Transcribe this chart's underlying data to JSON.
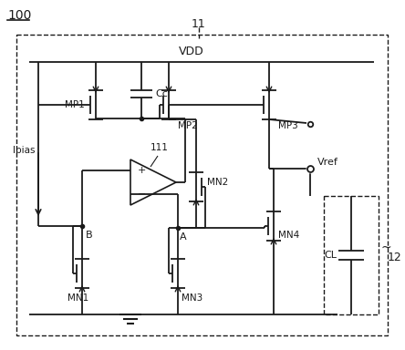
{
  "title": "100",
  "label_11": "11",
  "label_vdd": "VDD",
  "label_mp1": "MP1",
  "label_mp2": "MP2",
  "label_mp3": "MP3",
  "label_mn1": "MN1",
  "label_mn2": "MN2",
  "label_mn3": "MN3",
  "label_mn4": "MN4",
  "label_cc": "Cc",
  "label_ibias": "Ibias",
  "label_b": "B",
  "label_a": "A",
  "label_111": "111",
  "label_vref": "Vref",
  "label_cl": "CL",
  "label_12": "12",
  "bg_color": "#ffffff",
  "line_color": "#1a1a1a",
  "figsize": [
    4.44,
    3.84
  ],
  "dpi": 100
}
